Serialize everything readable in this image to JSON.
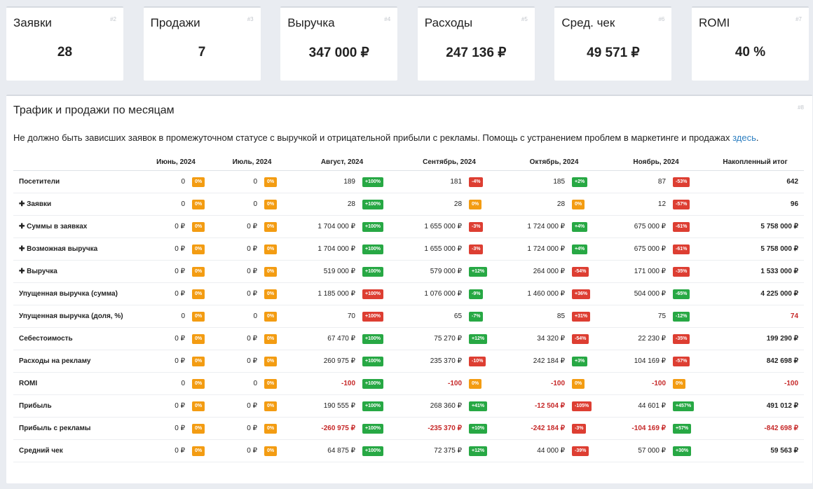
{
  "kpis": [
    {
      "title": "Заявки",
      "num": "#2",
      "value": "28"
    },
    {
      "title": "Продажи",
      "num": "#3",
      "value": "7"
    },
    {
      "title": "Выручка",
      "num": "#4",
      "value": "347 000 ₽"
    },
    {
      "title": "Расходы",
      "num": "#5",
      "value": "247 136 ₽"
    },
    {
      "title": "Сред. чек",
      "num": "#6",
      "value": "49 571 ₽"
    },
    {
      "title": "ROMI",
      "num": "#7",
      "value": "40 %"
    }
  ],
  "panel": {
    "title": "Трафик и продажи по месяцам",
    "num": "#8",
    "note": "Не должно быть зависших заявок в промежуточном статусе с выручкой и отрицательной прибыли с рекламы. Помощь с устранением проблем в маркетинге и продажах ",
    "link": "здесь",
    "note_end": "."
  },
  "table": {
    "headers": [
      "Июнь, 2024",
      "Июль, 2024",
      "Август, 2024",
      "Сентябрь, 2024",
      "Октябрь, 2024",
      "Ноябрь, 2024",
      "Накопленный итог"
    ],
    "rows": [
      {
        "label": "Посетители",
        "cells": [
          [
            "0",
            "0%",
            "o"
          ],
          [
            "0",
            "0%",
            "o"
          ],
          [
            "189",
            "+100%",
            "g"
          ],
          [
            "181",
            "-4%",
            "r"
          ],
          [
            "185",
            "+2%",
            "g"
          ],
          [
            "87",
            "-53%",
            "r"
          ]
        ],
        "total": "642"
      },
      {
        "label": "✚ Заявки",
        "cells": [
          [
            "0",
            "0%",
            "o"
          ],
          [
            "0",
            "0%",
            "o"
          ],
          [
            "28",
            "+100%",
            "g"
          ],
          [
            "28",
            "0%",
            "o"
          ],
          [
            "28",
            "0%",
            "o"
          ],
          [
            "12",
            "-57%",
            "r"
          ]
        ],
        "total": "96"
      },
      {
        "label": "✚ Суммы в заявках",
        "cells": [
          [
            "0 ₽",
            "0%",
            "o"
          ],
          [
            "0 ₽",
            "0%",
            "o"
          ],
          [
            "1 704 000 ₽",
            "+100%",
            "g"
          ],
          [
            "1 655 000 ₽",
            "-3%",
            "r"
          ],
          [
            "1 724 000 ₽",
            "+4%",
            "g"
          ],
          [
            "675 000 ₽",
            "-61%",
            "r"
          ]
        ],
        "total": "5 758 000 ₽"
      },
      {
        "label": "✚ Возможная выручка",
        "cells": [
          [
            "0 ₽",
            "0%",
            "o"
          ],
          [
            "0 ₽",
            "0%",
            "o"
          ],
          [
            "1 704 000 ₽",
            "+100%",
            "g"
          ],
          [
            "1 655 000 ₽",
            "-3%",
            "r"
          ],
          [
            "1 724 000 ₽",
            "+4%",
            "g"
          ],
          [
            "675 000 ₽",
            "-61%",
            "r"
          ]
        ],
        "total": "5 758 000 ₽"
      },
      {
        "label": "✚ Выручка",
        "cells": [
          [
            "0 ₽",
            "0%",
            "o"
          ],
          [
            "0 ₽",
            "0%",
            "o"
          ],
          [
            "519 000 ₽",
            "+100%",
            "g"
          ],
          [
            "579 000 ₽",
            "+12%",
            "g"
          ],
          [
            "264 000 ₽",
            "-54%",
            "r"
          ],
          [
            "171 000 ₽",
            "-35%",
            "r"
          ]
        ],
        "total": "1 533 000 ₽"
      },
      {
        "label": "Упущенная выручка (сумма)",
        "cells": [
          [
            "0 ₽",
            "0%",
            "o"
          ],
          [
            "0 ₽",
            "0%",
            "o"
          ],
          [
            "1 185 000 ₽",
            "+100%",
            "r"
          ],
          [
            "1 076 000 ₽",
            "-9%",
            "g"
          ],
          [
            "1 460 000 ₽",
            "+36%",
            "r"
          ],
          [
            "504 000 ₽",
            "-65%",
            "g"
          ]
        ],
        "total": "4 225 000 ₽"
      },
      {
        "label": "Упущенная выручка (доля, %)",
        "cells": [
          [
            "0",
            "0%",
            "o"
          ],
          [
            "0",
            "0%",
            "o"
          ],
          [
            "70",
            "+100%",
            "r"
          ],
          [
            "65",
            "-7%",
            "g"
          ],
          [
            "85",
            "+31%",
            "r"
          ],
          [
            "75",
            "-12%",
            "g"
          ]
        ],
        "total": "74",
        "total_red": true
      },
      {
        "label": "Себестоимость",
        "cells": [
          [
            "0 ₽",
            "0%",
            "o"
          ],
          [
            "0 ₽",
            "0%",
            "o"
          ],
          [
            "67 470 ₽",
            "+100%",
            "g"
          ],
          [
            "75 270 ₽",
            "+12%",
            "g"
          ],
          [
            "34 320 ₽",
            "-54%",
            "r"
          ],
          [
            "22 230 ₽",
            "-35%",
            "r"
          ]
        ],
        "total": "199 290 ₽"
      },
      {
        "label": "Расходы на рекламу",
        "cells": [
          [
            "0 ₽",
            "0%",
            "o"
          ],
          [
            "0 ₽",
            "0%",
            "o"
          ],
          [
            "260 975 ₽",
            "+100%",
            "g"
          ],
          [
            "235 370 ₽",
            "-10%",
            "r"
          ],
          [
            "242 184 ₽",
            "+3%",
            "g"
          ],
          [
            "104 169 ₽",
            "-57%",
            "r"
          ]
        ],
        "total": "842 698 ₽"
      },
      {
        "label": "ROMI",
        "cells": [
          [
            "0",
            "0%",
            "o"
          ],
          [
            "0",
            "0%",
            "o"
          ],
          [
            "-100",
            "+100%",
            "g",
            "neg"
          ],
          [
            "-100",
            "0%",
            "o",
            "neg"
          ],
          [
            "-100",
            "0%",
            "o",
            "neg"
          ],
          [
            "-100",
            "0%",
            "o",
            "neg"
          ]
        ],
        "total": "-100",
        "total_red": true
      },
      {
        "label": "Прибыль",
        "cells": [
          [
            "0 ₽",
            "0%",
            "o"
          ],
          [
            "0 ₽",
            "0%",
            "o"
          ],
          [
            "190 555 ₽",
            "+100%",
            "g"
          ],
          [
            "268 360 ₽",
            "+41%",
            "g"
          ],
          [
            "-12 504 ₽",
            "-105%",
            "r",
            "neg"
          ],
          [
            "44 601 ₽",
            "+457%",
            "g"
          ]
        ],
        "total": "491 012 ₽"
      },
      {
        "label": "Прибыль с рекламы",
        "cells": [
          [
            "0 ₽",
            "0%",
            "o"
          ],
          [
            "0 ₽",
            "0%",
            "o"
          ],
          [
            "-260 975 ₽",
            "+100%",
            "g",
            "neg"
          ],
          [
            "-235 370 ₽",
            "+10%",
            "g",
            "neg"
          ],
          [
            "-242 184 ₽",
            "-3%",
            "r",
            "neg"
          ],
          [
            "-104 169 ₽",
            "+57%",
            "g",
            "neg"
          ]
        ],
        "total": "-842 698 ₽",
        "total_red": true
      },
      {
        "label": "Средний чек",
        "cells": [
          [
            "0 ₽",
            "0%",
            "o"
          ],
          [
            "0 ₽",
            "0%",
            "o"
          ],
          [
            "64 875 ₽",
            "+100%",
            "g"
          ],
          [
            "72 375 ₽",
            "+12%",
            "g"
          ],
          [
            "44 000 ₽",
            "-39%",
            "r"
          ],
          [
            "57 000 ₽",
            "+30%",
            "g"
          ]
        ],
        "total": "59 563 ₽"
      }
    ]
  },
  "colors": {
    "badge_orange": "#f39c12",
    "badge_green": "#27a844",
    "badge_red": "#dd3e32",
    "link": "#2d7fc1",
    "negative": "#c62828"
  }
}
